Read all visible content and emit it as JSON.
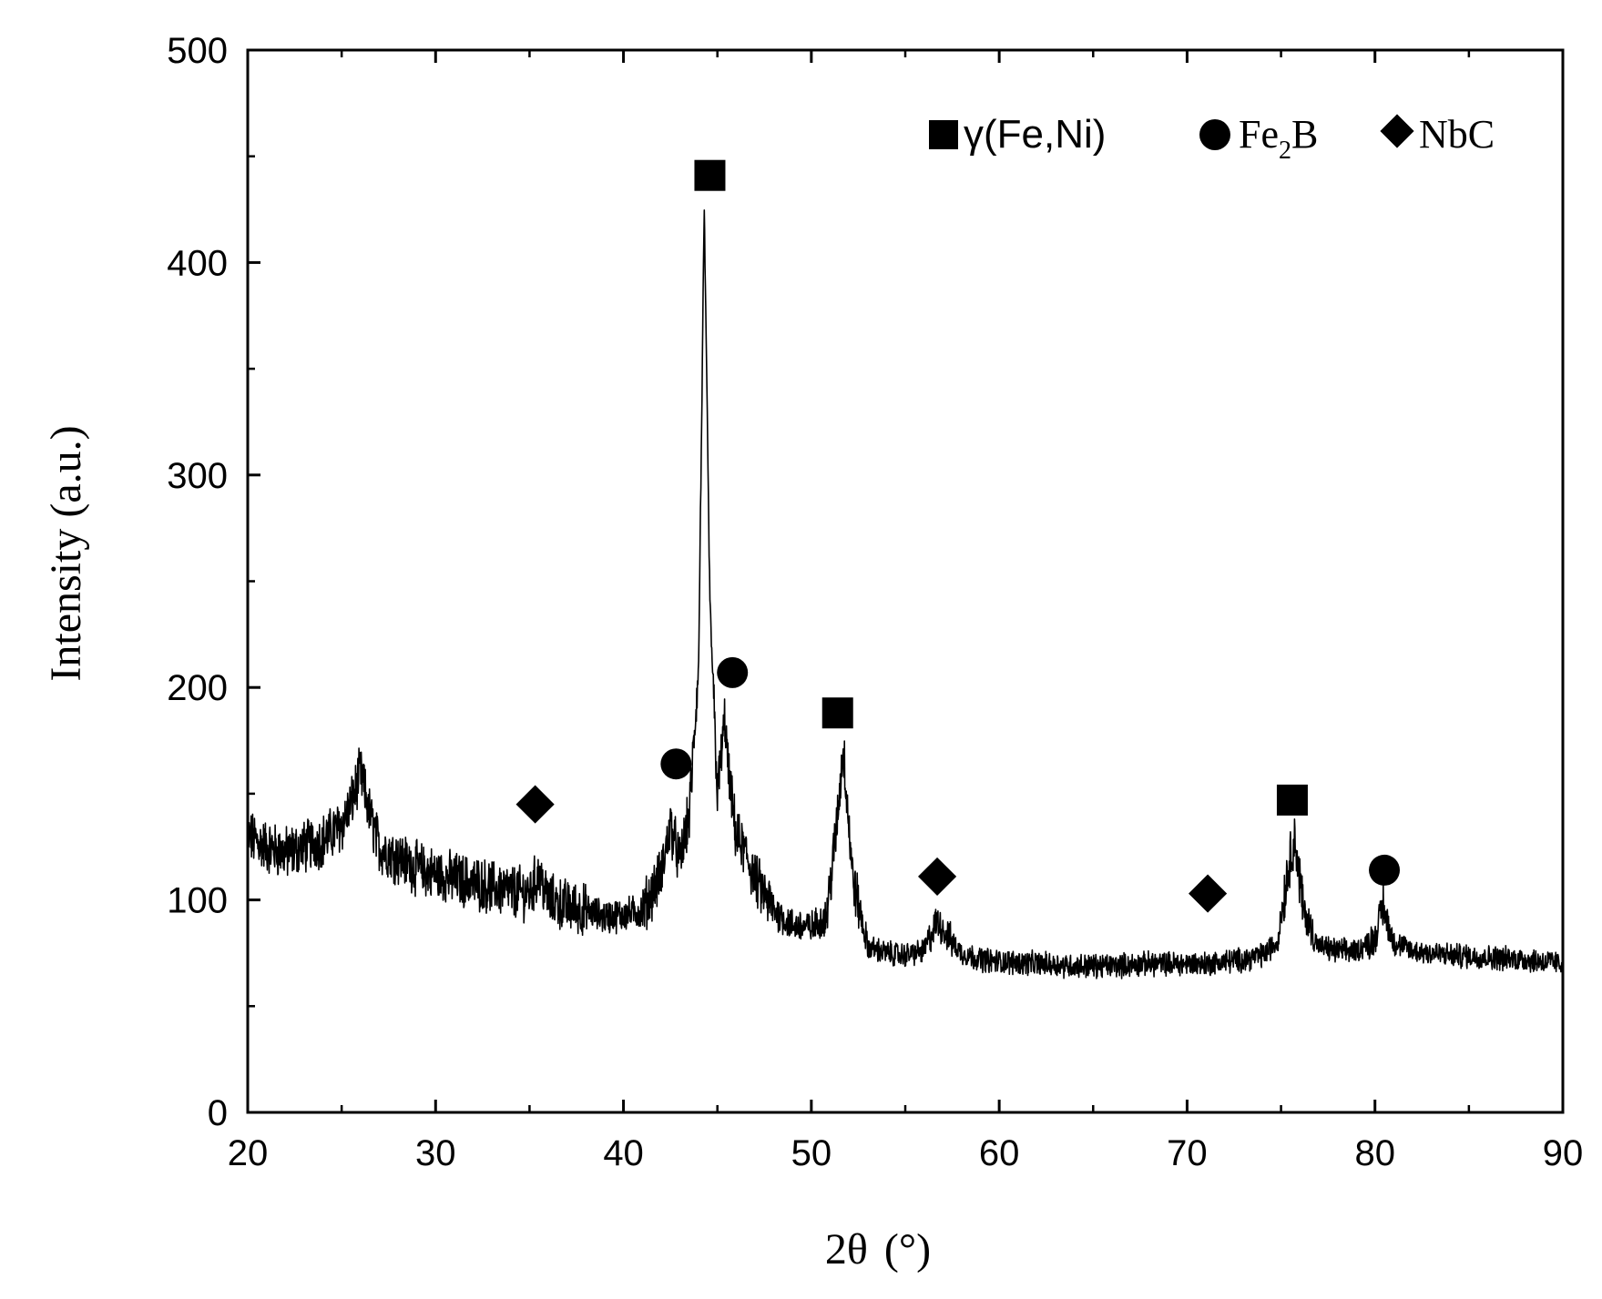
{
  "chart_data": {
    "type": "line",
    "xlabel": "2θ (°)",
    "xlabel_main": "2θ",
    "xlabel_unit": "(°)",
    "ylabel": "Intensity (a.u.)",
    "xlim": [
      20,
      90
    ],
    "ylim": [
      0,
      500
    ],
    "x_ticks": [
      20,
      30,
      40,
      50,
      60,
      70,
      80,
      90
    ],
    "y_ticks": [
      0,
      100,
      200,
      300,
      400,
      500
    ],
    "grid": false,
    "legend_position": "top-right",
    "legend": [
      {
        "marker": "square",
        "label": "γ(Fe,Ni)"
      },
      {
        "marker": "circle",
        "label_main": "Fe",
        "label_sub": "2",
        "label_tail": "B"
      },
      {
        "marker": "diamond",
        "label": "NbC"
      }
    ],
    "series": [
      {
        "x": [
          20,
          21,
          22,
          23,
          24,
          25,
          25.5,
          26,
          26.5,
          27,
          28,
          29,
          30,
          31,
          32,
          33,
          34,
          35,
          35.5,
          36,
          37,
          38,
          39,
          40,
          41,
          42,
          42.5,
          43,
          43.5,
          44,
          44.3,
          44.6,
          45,
          45.4,
          45.6,
          46,
          46.5,
          47,
          48,
          49,
          50,
          50.8,
          51.3,
          51.7,
          52.2,
          53,
          54,
          55,
          56,
          56.7,
          57.5,
          58,
          59,
          60,
          62,
          64,
          66,
          68,
          70,
          71,
          72,
          73,
          74,
          74.8,
          75.3,
          75.7,
          76.2,
          77,
          78,
          79,
          80,
          80.4,
          81,
          82,
          84,
          86,
          88,
          90
        ],
        "y": [
          130,
          125,
          122,
          125,
          128,
          135,
          145,
          160,
          140,
          125,
          120,
          115,
          112,
          110,
          108,
          106,
          104,
          103,
          112,
          100,
          97,
          95,
          92,
          93,
          95,
          112,
          135,
          118,
          140,
          210,
          425,
          240,
          150,
          185,
          158,
          130,
          122,
          110,
          95,
          88,
          87,
          92,
          130,
          172,
          110,
          78,
          75,
          74,
          76,
          90,
          80,
          75,
          72,
          71,
          70,
          69,
          69,
          70,
          70,
          70,
          71,
          72,
          74,
          80,
          110,
          130,
          95,
          78,
          76,
          76,
          82,
          97,
          80,
          76,
          74,
          73,
          72,
          70
        ]
      }
    ],
    "annotations": [
      {
        "marker": "diamond",
        "x": 35.3,
        "y": 145
      },
      {
        "marker": "circle",
        "x": 42.8,
        "y": 164
      },
      {
        "marker": "square",
        "x": 44.6,
        "y": 441
      },
      {
        "marker": "circle",
        "x": 45.8,
        "y": 207
      },
      {
        "marker": "square",
        "x": 51.4,
        "y": 188
      },
      {
        "marker": "diamond",
        "x": 56.7,
        "y": 111
      },
      {
        "marker": "diamond",
        "x": 71.1,
        "y": 103
      },
      {
        "marker": "square",
        "x": 75.6,
        "y": 147
      },
      {
        "marker": "circle",
        "x": 80.5,
        "y": 114
      }
    ]
  }
}
